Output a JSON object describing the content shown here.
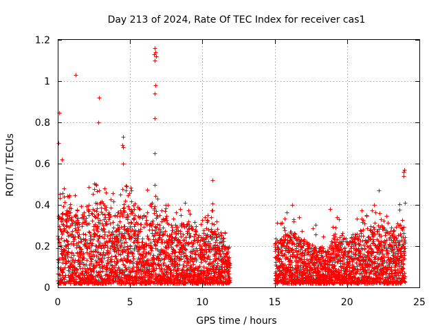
{
  "chart_data": {
    "type": "scatter",
    "title": "Day 213 of 2024, Rate Of TEC Index for receiver cas1",
    "xlabel": "GPS time / hours",
    "ylabel": "ROTI / TECUs",
    "xlim": [
      0,
      25
    ],
    "ylim": [
      0,
      1.2
    ],
    "xticks": [
      0,
      5,
      10,
      15,
      20,
      25
    ],
    "xtick_labels": [
      "0",
      "5",
      "10",
      "15",
      "20",
      "25"
    ],
    "yticks": [
      0,
      0.2,
      0.4,
      0.6,
      0.8,
      1.0,
      1.2
    ],
    "ytick_labels": [
      "0",
      "0.2",
      "0.4",
      "0.6",
      "0.8",
      "1",
      "1.2"
    ],
    "grid": true,
    "marker": "+",
    "color": "#ff0000",
    "data_gap_hours": [
      11.9,
      15.0
    ],
    "notable_points": [
      {
        "x": 0.1,
        "y": 0.845
      },
      {
        "x": 0.05,
        "y": 0.7
      },
      {
        "x": 0.3,
        "y": 0.62
      },
      {
        "x": 1.25,
        "y": 1.03
      },
      {
        "x": 2.85,
        "y": 0.92
      },
      {
        "x": 2.8,
        "y": 0.8
      },
      {
        "x": 4.5,
        "y": 0.73
      },
      {
        "x": 4.45,
        "y": 0.69
      },
      {
        "x": 4.5,
        "y": 0.68
      },
      {
        "x": 4.5,
        "y": 0.6
      },
      {
        "x": 6.7,
        "y": 1.16
      },
      {
        "x": 6.75,
        "y": 1.14
      },
      {
        "x": 6.65,
        "y": 1.13
      },
      {
        "x": 6.8,
        "y": 1.12
      },
      {
        "x": 6.72,
        "y": 1.1
      },
      {
        "x": 6.75,
        "y": 0.98
      },
      {
        "x": 6.7,
        "y": 0.94
      },
      {
        "x": 6.68,
        "y": 0.82
      },
      {
        "x": 6.72,
        "y": 0.65
      },
      {
        "x": 10.7,
        "y": 0.52
      },
      {
        "x": 11.85,
        "y": 0.03
      },
      {
        "x": 11.8,
        "y": 0.14
      },
      {
        "x": 16.2,
        "y": 0.4
      },
      {
        "x": 18.8,
        "y": 0.38
      },
      {
        "x": 22.2,
        "y": 0.47
      },
      {
        "x": 23.95,
        "y": 0.57
      },
      {
        "x": 23.9,
        "y": 0.56
      },
      {
        "x": 23.92,
        "y": 0.54
      },
      {
        "x": 24.0,
        "y": 0.41
      }
    ],
    "dense_series": {
      "description": "dense ROTI samples, 0-11.9 h and 15.0-24 h",
      "segments": [
        {
          "x_start": 0.0,
          "x_end": 11.9,
          "step": 0.005,
          "envelope": {
            "x": [
              0,
              0.5,
              1,
              2,
              3,
              4,
              4.5,
              5,
              6,
              6.5,
              7,
              8,
              9,
              10,
              10.5,
              11,
              11.5,
              11.9
            ],
            "y": [
              0.32,
              0.4,
              0.35,
              0.38,
              0.4,
              0.33,
              0.42,
              0.38,
              0.33,
              0.4,
              0.35,
              0.28,
              0.3,
              0.22,
              0.3,
              0.28,
              0.22,
              0.12
            ]
          }
        },
        {
          "x_start": 15.0,
          "x_end": 24.0,
          "step": 0.005,
          "envelope": {
            "x": [
              15,
              15.5,
              16,
              17,
              18,
              18.5,
              19,
              20,
              21,
              22,
              22.5,
              23,
              23.5,
              24
            ],
            "y": [
              0.2,
              0.22,
              0.26,
              0.22,
              0.18,
              0.17,
              0.24,
              0.22,
              0.26,
              0.3,
              0.28,
              0.26,
              0.3,
              0.27
            ]
          }
        }
      ]
    }
  }
}
